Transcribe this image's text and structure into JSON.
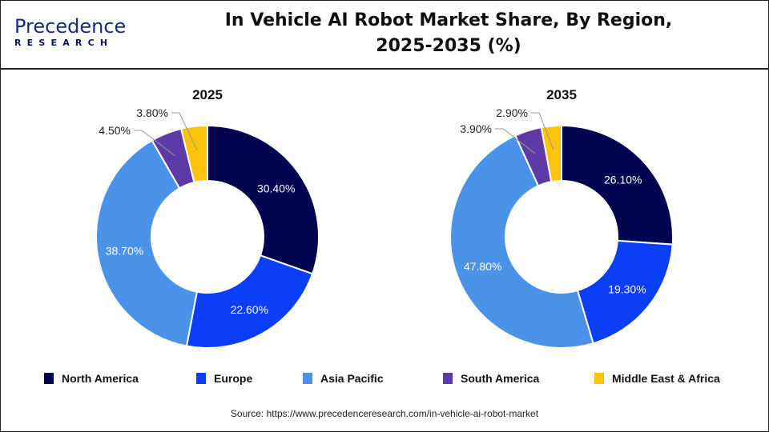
{
  "logo": {
    "line1": "Precedence",
    "line2": "RESEARCH"
  },
  "title": "In Vehicle AI Robot Market Share, By Region, 2025-2035 (%)",
  "colors": {
    "North America": "#03044f",
    "Europe": "#0b3ef7",
    "Asia Pacific": "#4a93e8",
    "South America": "#5e3aa6",
    "Middle East & Africa": "#fdc20c"
  },
  "chart_data": [
    {
      "type": "pie",
      "donut": true,
      "title": "2025",
      "categories": [
        "North America",
        "Europe",
        "Asia Pacific",
        "South America",
        "Middle East & Africa"
      ],
      "values": [
        30.4,
        22.6,
        38.7,
        4.5,
        3.8
      ],
      "labels": [
        "30.40%",
        "22.60%",
        "38.70%",
        "4.50%",
        "3.80%"
      ]
    },
    {
      "type": "pie",
      "donut": true,
      "title": "2035",
      "categories": [
        "North America",
        "Europe",
        "Asia Pacific",
        "South America",
        "Middle East & Africa"
      ],
      "values": [
        26.1,
        19.3,
        47.8,
        3.9,
        2.9
      ],
      "labels": [
        "26.10%",
        "19.30%",
        "47.80%",
        "3.90%",
        "2.90%"
      ]
    }
  ],
  "legend": {
    "placement": "bottom",
    "items": [
      "North America",
      "Europe",
      "Asia Pacific",
      "South America",
      "Middle East & Africa"
    ]
  },
  "source": "Source: https://www.precedenceresearch.com/in-vehicle-ai-robot-market"
}
